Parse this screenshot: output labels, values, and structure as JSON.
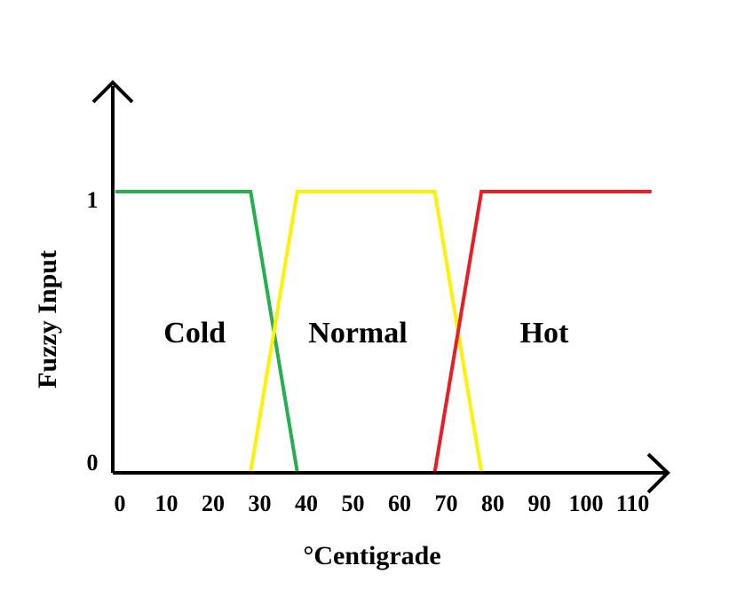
{
  "chart_data": {
    "type": "line",
    "xlabel": "°Centigrade",
    "ylabel": "Fuzzy Input",
    "xlim": [
      0,
      115
    ],
    "ylim": [
      0,
      1
    ],
    "x_ticks": [
      "0",
      "10",
      "20",
      "30",
      "40",
      "50",
      "60",
      "70",
      "80",
      "90",
      "100",
      "110"
    ],
    "x_tick_values": [
      0,
      10,
      20,
      30,
      40,
      50,
      60,
      70,
      80,
      90,
      100,
      110
    ],
    "y_ticks": [
      "0",
      "1"
    ],
    "y_tick_values": [
      0,
      1
    ],
    "grid": false,
    "series": [
      {
        "name": "Cold",
        "color": "#22b14c",
        "points": [
          {
            "x": 0,
            "y": 1
          },
          {
            "x": 29,
            "y": 1
          },
          {
            "x": 39,
            "y": 0
          }
        ]
      },
      {
        "name": "Normal",
        "color": "#fff200",
        "points": [
          {
            "x": 29,
            "y": 0
          },
          {
            "x": 39,
            "y": 1
          },
          {
            "x": 68.5,
            "y": 1
          },
          {
            "x": 78.5,
            "y": 0
          }
        ]
      },
      {
        "name": "Hot",
        "color": "#ed1c24",
        "points": [
          {
            "x": 68.5,
            "y": 0
          },
          {
            "x": 78.5,
            "y": 1
          },
          {
            "x": 115,
            "y": 1
          }
        ]
      }
    ],
    "annotations": [
      {
        "text": "Cold",
        "x": 17,
        "y": 0.5
      },
      {
        "text": "Normal",
        "x": 52,
        "y": 0.5
      },
      {
        "text": "Hot",
        "x": 92,
        "y": 0.5
      }
    ]
  }
}
